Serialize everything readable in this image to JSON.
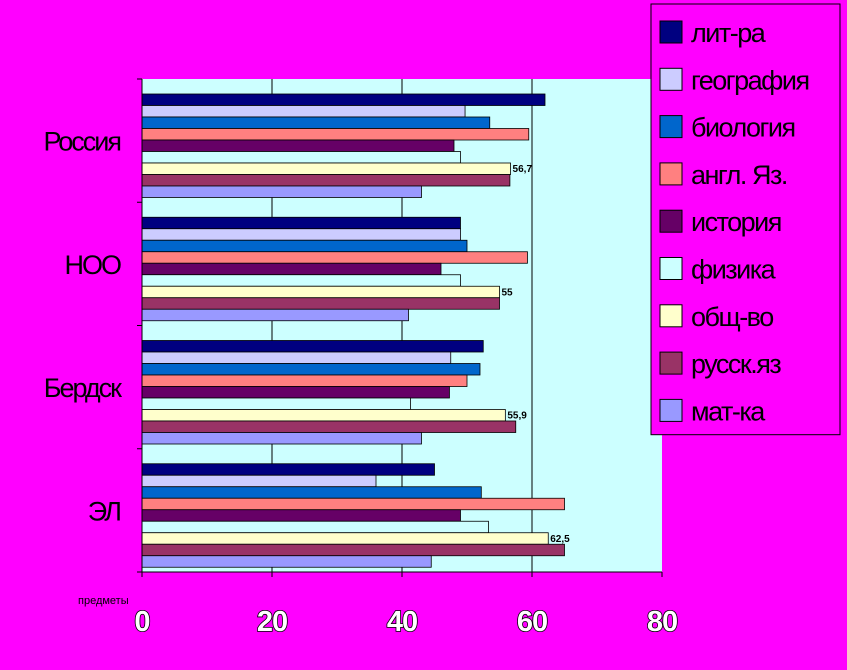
{
  "chart_data": {
    "type": "bar",
    "orientation": "horizontal",
    "categories": [
      "Россия",
      "НОО",
      "Бердск",
      "ЭЛ"
    ],
    "xlabel": "предметы",
    "xlim": [
      0,
      80
    ],
    "xticks": [
      "0",
      "20",
      "40",
      "60",
      "80"
    ],
    "grid": true,
    "legend_position": "top-right",
    "plot_background": "#CCFFFF",
    "page_background": "#FF00FF",
    "series": [
      {
        "name": "лит-ра",
        "color": "#000080",
        "values": [
          62,
          49,
          52.5,
          45
        ]
      },
      {
        "name": "география",
        "color": "#CCCCFF",
        "values": [
          49.7,
          49,
          47.5,
          36
        ]
      },
      {
        "name": "биология",
        "color": "#0066CC",
        "values": [
          53.5,
          50,
          52,
          52.2
        ]
      },
      {
        "name": "англ. Яз.",
        "color": "#FF8080",
        "values": [
          59.5,
          59.3,
          50,
          65
        ]
      },
      {
        "name": "история",
        "color": "#660066",
        "values": [
          48,
          46,
          47.3,
          49
        ]
      },
      {
        "name": "физика",
        "color": "#CCFFFF",
        "values": [
          49,
          49,
          41.3,
          53.3
        ]
      },
      {
        "name": "общ-во",
        "color": "#FFFFCC",
        "values": [
          56.7,
          55,
          55.9,
          62.5
        ],
        "data_labels": [
          "56,7",
          "55",
          "55,9",
          "62,5"
        ]
      },
      {
        "name": "русск.яз",
        "color": "#993366",
        "values": [
          56.6,
          55,
          57.5,
          65
        ]
      },
      {
        "name": "мат-ка",
        "color": "#9999FF",
        "values": [
          43,
          41,
          43,
          44.5
        ]
      }
    ]
  }
}
